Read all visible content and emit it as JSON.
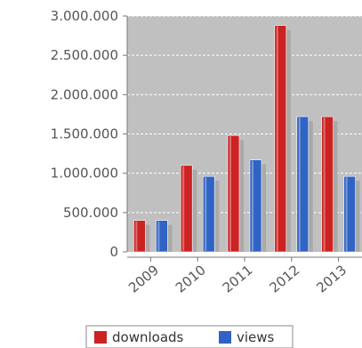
{
  "chart_data": {
    "type": "bar",
    "categories": [
      "2009",
      "2010",
      "2011",
      "2012",
      "2013"
    ],
    "series": [
      {
        "name": "downloads",
        "values": [
          400000,
          1100000,
          1480000,
          2880000,
          1720000
        ]
      },
      {
        "name": "views",
        "values": [
          400000,
          960000,
          1170000,
          1720000,
          960000
        ]
      }
    ],
    "ylim": [
      0,
      3000000
    ],
    "yticks": [
      "0",
      "500.000",
      "1.000.000",
      "1.500.000",
      "2.000.000",
      "2.500.000",
      "3.000.000"
    ],
    "ytick_values": [
      0,
      500000,
      1000000,
      1500000,
      2000000,
      2500000,
      3000000
    ],
    "grid": true,
    "legend_position": "bottom",
    "colors": {
      "downloads": "#cc2222",
      "views": "#2f63c4",
      "shadow": "#a9a9a9",
      "plot_background": "#c0c0c0",
      "gridline": "#ffffff"
    }
  }
}
